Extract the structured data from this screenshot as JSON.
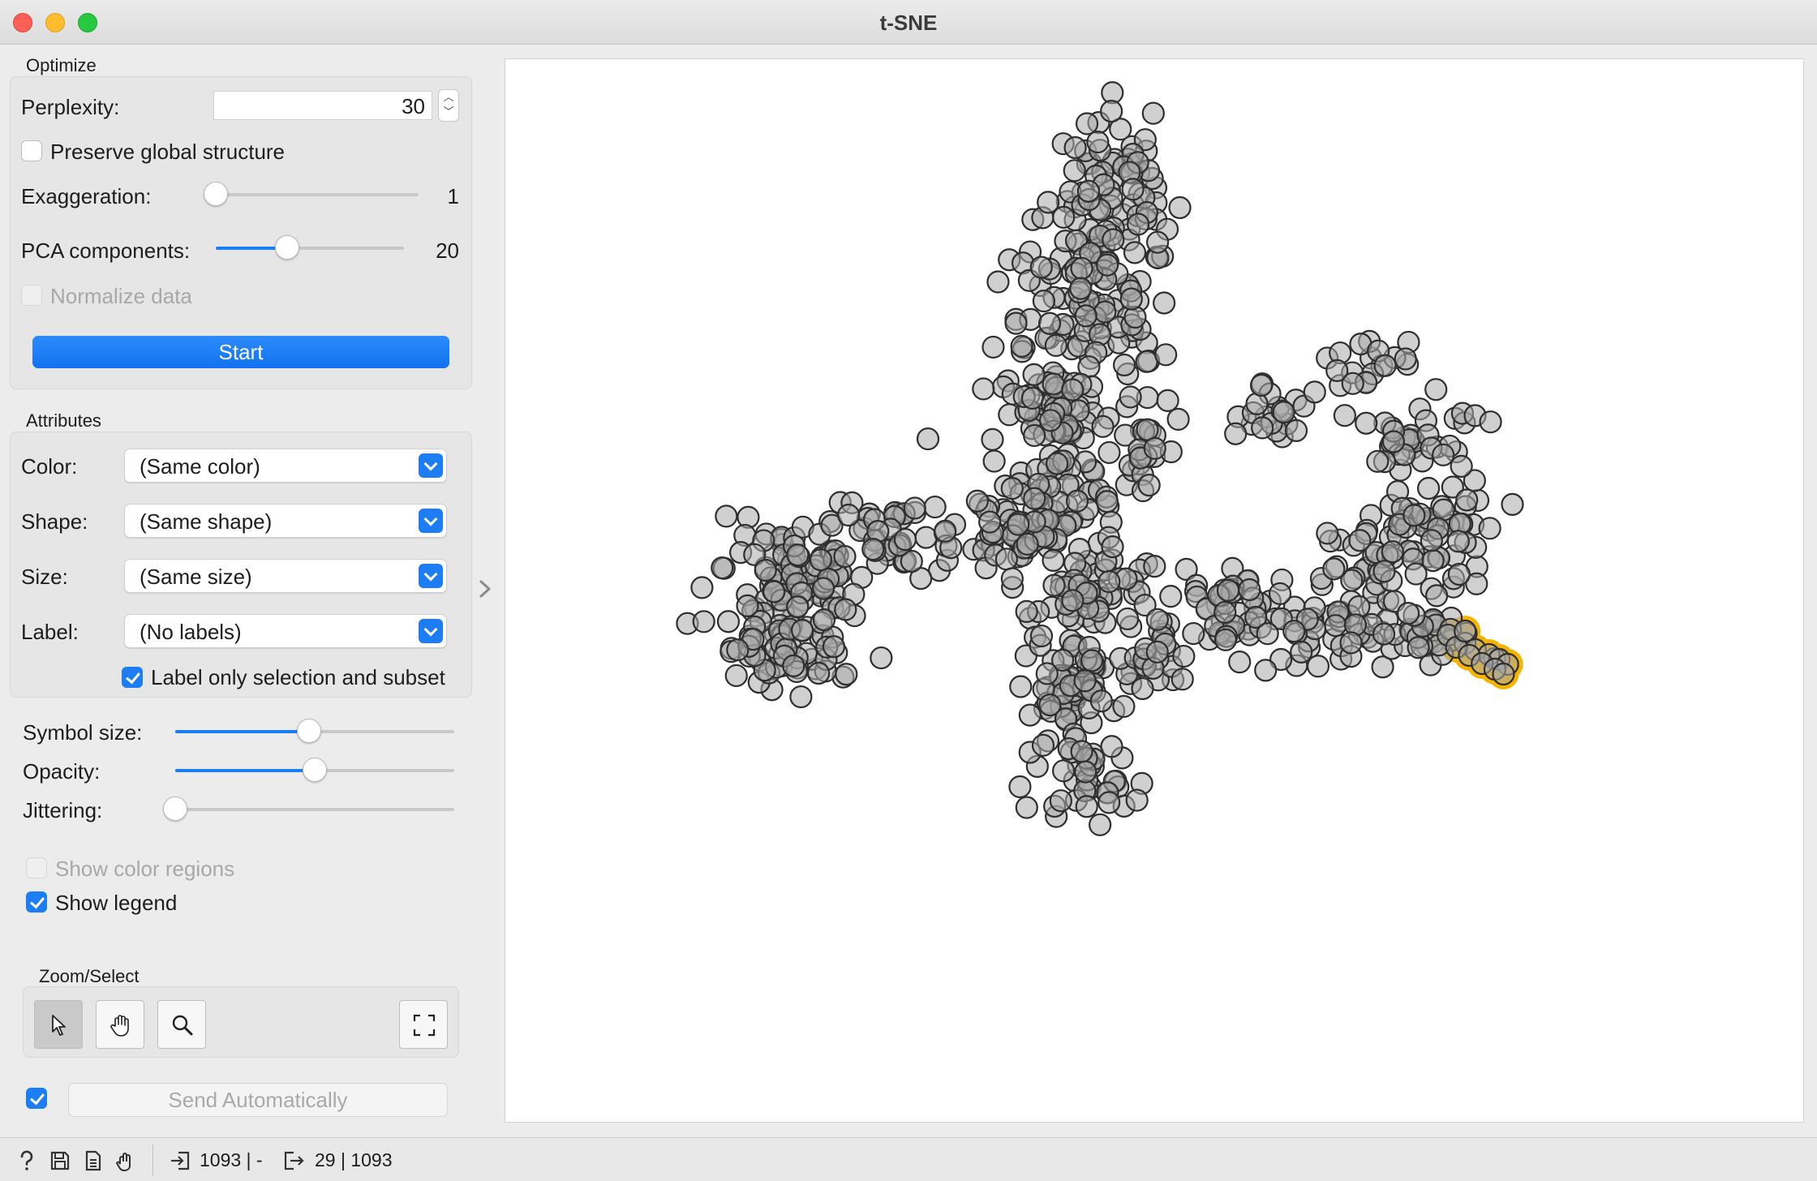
{
  "window": {
    "title": "t-SNE"
  },
  "optimize": {
    "section_title": "Optimize",
    "perplexity_label": "Perplexity:",
    "perplexity_value": "30",
    "preserve_label": "Preserve global structure",
    "preserve_checked": false,
    "exaggeration_label": "Exaggeration:",
    "exaggeration_value": "1",
    "exaggeration_level": 0.0,
    "pca_label": "PCA components:",
    "pca_value": "20",
    "pca_level": 0.38,
    "normalize_label": "Normalize data",
    "normalize_enabled": false,
    "start_label": "Start"
  },
  "attributes": {
    "section_title": "Attributes",
    "color_label": "Color:",
    "color_value": "(Same color)",
    "shape_label": "Shape:",
    "shape_value": "(Same shape)",
    "size_label": "Size:",
    "size_value": "(Same size)",
    "label_label": "Label:",
    "label_value": "(No labels)",
    "label_only_label": "Label only selection and subset",
    "label_only_checked": true
  },
  "display": {
    "symbol_size_label": "Symbol size:",
    "symbol_size_level": 0.48,
    "opacity_label": "Opacity:",
    "opacity_level": 0.5,
    "jittering_label": "Jittering:",
    "jittering_level": 0.0,
    "show_color_regions_label": "Show color regions",
    "show_legend_label": "Show legend",
    "show_legend_checked": true
  },
  "zoom_select": {
    "section_title": "Zoom/Select",
    "tools": [
      "select-pointer-icon",
      "pan-hand-icon",
      "zoom-magnifier-icon",
      "reset-zoom-icon"
    ]
  },
  "send": {
    "auto_checked": true,
    "label": "Send Automatically"
  },
  "status": {
    "input_summary": "1093 | -",
    "output_summary": "29 | 1093"
  },
  "colors": {
    "accent": "#1d7df5",
    "point_fill": "#a9a9a9",
    "point_stroke": "#2e2e2e",
    "selection_halo": "#f5b400"
  }
}
